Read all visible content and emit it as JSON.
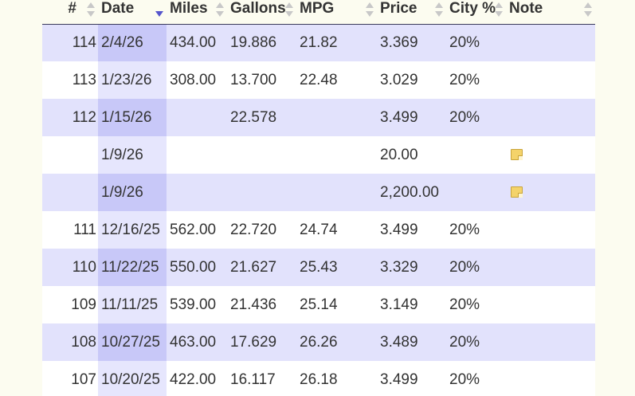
{
  "table": {
    "headers": {
      "num": "#",
      "date": "Date",
      "miles": "Miles",
      "gallons": "Gallons",
      "mpg": "MPG",
      "price": "Price",
      "city": "City %",
      "note": "Note"
    },
    "sorted_column": "date",
    "sort_direction": "descending",
    "rows": [
      {
        "num": "114",
        "date": "2/4/26",
        "miles": "434.00",
        "gallons": "19.886",
        "mpg": "21.82",
        "price": "3.369",
        "city": "20%",
        "note": ""
      },
      {
        "num": "113",
        "date": "1/23/26",
        "miles": "308.00",
        "gallons": "13.700",
        "mpg": "22.48",
        "price": "3.029",
        "city": "20%",
        "note": ""
      },
      {
        "num": "112",
        "date": "1/15/26",
        "miles": "",
        "gallons": "22.578",
        "mpg": "",
        "price": "3.499",
        "city": "20%",
        "note": ""
      },
      {
        "num": "",
        "date": "1/9/26",
        "miles": "",
        "gallons": "",
        "mpg": "",
        "price": "20.00",
        "city": "",
        "note": "note-icon"
      },
      {
        "num": "",
        "date": "1/9/26",
        "miles": "",
        "gallons": "",
        "mpg": "",
        "price": "2,200.00",
        "city": "",
        "note": "note-icon"
      },
      {
        "num": "111",
        "date": "12/16/25",
        "miles": "562.00",
        "gallons": "22.720",
        "mpg": "24.74",
        "price": "3.499",
        "city": "20%",
        "note": ""
      },
      {
        "num": "110",
        "date": "11/22/25",
        "miles": "550.00",
        "gallons": "21.627",
        "mpg": "25.43",
        "price": "3.329",
        "city": "20%",
        "note": ""
      },
      {
        "num": "109",
        "date": "11/11/25",
        "miles": "539.00",
        "gallons": "21.436",
        "mpg": "25.14",
        "price": "3.149",
        "city": "20%",
        "note": ""
      },
      {
        "num": "108",
        "date": "10/27/25",
        "miles": "463.00",
        "gallons": "17.629",
        "mpg": "26.26",
        "price": "3.489",
        "city": "20%",
        "note": ""
      },
      {
        "num": "107",
        "date": "10/20/25",
        "miles": "422.00",
        "gallons": "16.117",
        "mpg": "26.18",
        "price": "3.499",
        "city": "20%",
        "note": ""
      }
    ]
  },
  "colors": {
    "background": "#fcfcf0",
    "row_odd": "#e2e2fc",
    "row_even": "#ffffff",
    "sorted_column_odd": "#c8c8f8",
    "sorted_column_even": "#e6e6fd",
    "sort_active_arrow": "#5555cc"
  }
}
